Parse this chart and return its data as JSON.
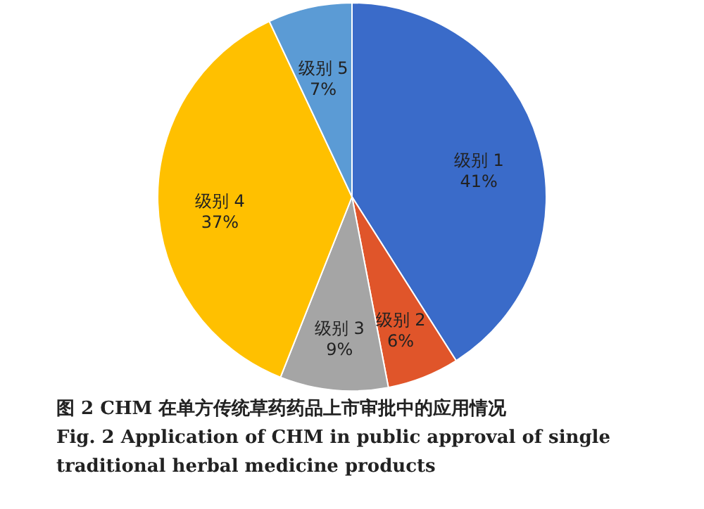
{
  "chart_data": {
    "type": "pie",
    "categories": [
      "级别 1",
      "级别 2",
      "级别 3",
      "级别 4",
      "级别 5"
    ],
    "values": [
      41,
      6,
      9,
      37,
      7
    ],
    "value_labels": [
      "41%",
      "6%",
      "9%",
      "37%",
      "7%"
    ],
    "colors": [
      "#3a6bc9",
      "#e0552a",
      "#a5a5a5",
      "#ffc000",
      "#5b9bd5"
    ],
    "annotations": [
      "图 2    CHM 在单方传统草药药品上市审批中的应用情况",
      "Fig. 2    Application of CHM in public approval of single",
      "traditional herbal medicine products"
    ]
  }
}
